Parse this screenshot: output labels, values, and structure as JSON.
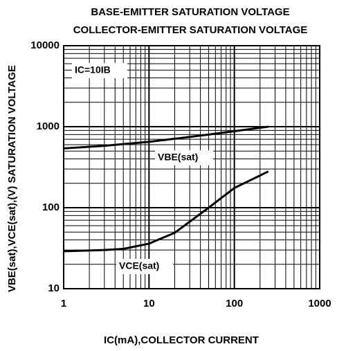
{
  "chart_data": {
    "type": "line",
    "title": [
      "BASE-EMITTER SATURATION VOLTAGE",
      "COLLECTOR-EMITTER SATURATION VOLTAGE"
    ],
    "xlabel": "IC(mA),COLLECTOR CURRENT",
    "ylabel": "VBE(sat),VCE(sat),(V) SATURATION VOLTAGE",
    "x": [
      1,
      3,
      5,
      10,
      20,
      50,
      100,
      250
    ],
    "series": [
      {
        "name": "VBE(sat)",
        "color": "#000000",
        "values": [
          540,
          580,
          610,
          650,
          710,
          800,
          880,
          1000
        ]
      },
      {
        "name": "VCE(sat)",
        "color": "#000000",
        "values": [
          29,
          30,
          31,
          36,
          49,
          100,
          175,
          280
        ]
      }
    ],
    "annotations": [
      "IC=10IB"
    ],
    "xlim": [
      1,
      1000
    ],
    "xticks": [
      1,
      10,
      100,
      1000
    ],
    "ylim": [
      10,
      10000
    ],
    "yticks": [
      10,
      100,
      1000,
      10000
    ],
    "xscale": "log",
    "yscale": "log",
    "grid": true
  }
}
